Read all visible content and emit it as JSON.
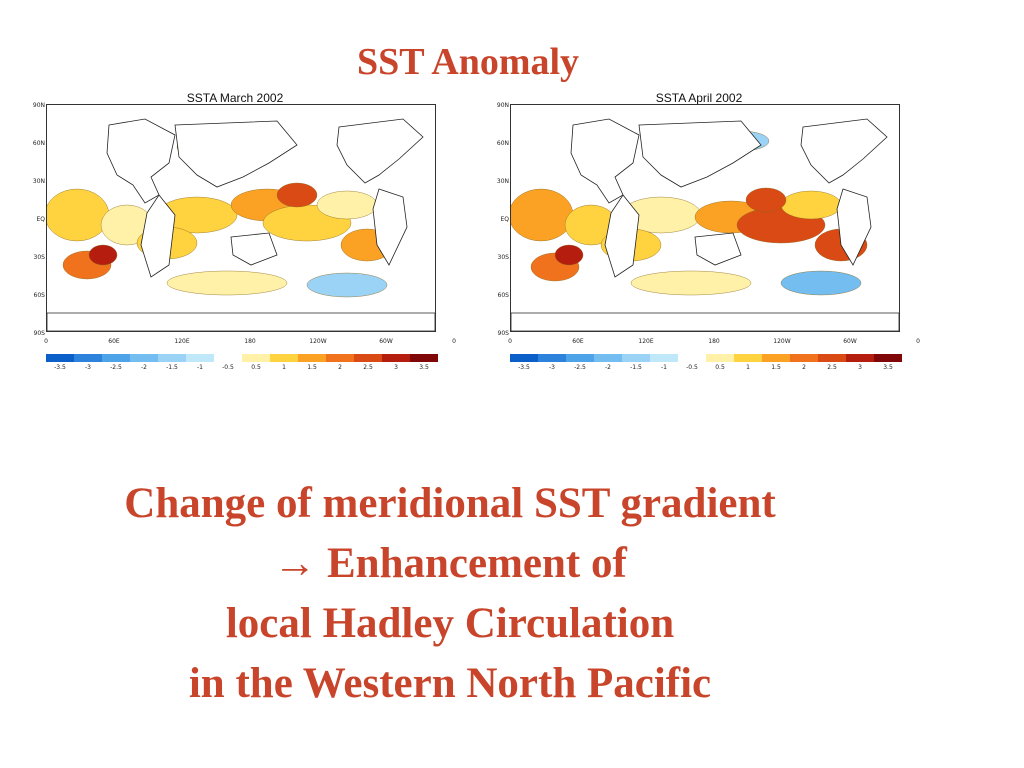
{
  "slide": {
    "title": "SST Anomaly",
    "accent_color": "#c8452b"
  },
  "maps": [
    {
      "title": "SSTA March 2002",
      "lat_labels": [
        "90N",
        "60N",
        "30N",
        "EQ",
        "30S",
        "60S",
        "90S"
      ],
      "lon_labels": [
        "0",
        "60E",
        "120E",
        "180",
        "120W",
        "60W",
        "0"
      ],
      "colorbar": {
        "labels": [
          "-3.5",
          "-3",
          "-2.5",
          "-2",
          "-1.5",
          "-1",
          "-0.5",
          "0.5",
          "1",
          "1.5",
          "2",
          "2.5",
          "3",
          "3.5"
        ],
        "colors": [
          "#0a5fc8",
          "#2d82dc",
          "#4fa3e8",
          "#74bdf0",
          "#9ad3f5",
          "#bfe8fa",
          "#ffffff",
          "#fff2a8",
          "#ffd23f",
          "#fba224",
          "#f0721c",
          "#d94a15",
          "#b51d0e",
          "#7f0707"
        ]
      }
    },
    {
      "title": "SSTA April 2002",
      "lat_labels": [
        "90N",
        "60N",
        "30N",
        "EQ",
        "30S",
        "60S",
        "90S"
      ],
      "lon_labels": [
        "0",
        "60E",
        "120E",
        "180",
        "120W",
        "60W",
        "0"
      ],
      "colorbar": {
        "labels": [
          "-3.5",
          "-3",
          "-2.5",
          "-2",
          "-1.5",
          "-1",
          "-0.5",
          "0.5",
          "1",
          "1.5",
          "2",
          "2.5",
          "3",
          "3.5"
        ],
        "colors": [
          "#0a5fc8",
          "#2d82dc",
          "#4fa3e8",
          "#74bdf0",
          "#9ad3f5",
          "#bfe8fa",
          "#ffffff",
          "#fff2a8",
          "#ffd23f",
          "#fba224",
          "#f0721c",
          "#d94a15",
          "#b51d0e",
          "#7f0707"
        ]
      }
    }
  ],
  "caption": {
    "line1": "Change of meridional SST gradient",
    "line2": "→ Enhancement of",
    "line3": "local Hadley Circulation",
    "line4": "in the Western North Pacific"
  }
}
